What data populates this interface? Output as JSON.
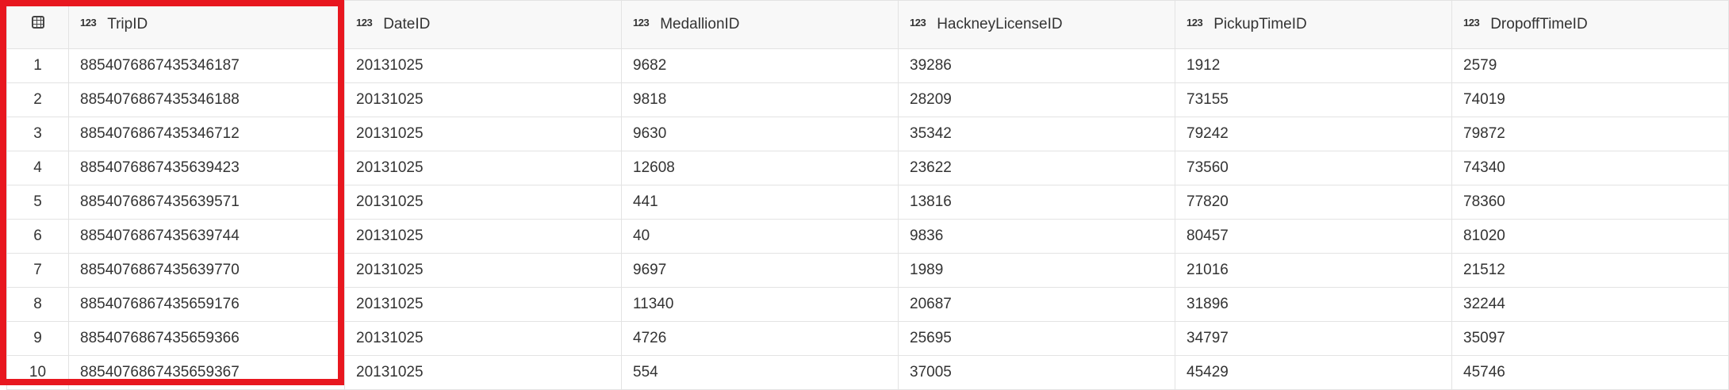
{
  "columns": [
    "TripID",
    "DateID",
    "MedallionID",
    "HackneyLicenseID",
    "PickupTimeID",
    "DropoffTimeID"
  ],
  "type_icon_label": "123",
  "highlight_color": "#e8171f",
  "rows": [
    [
      "1",
      "8854076867435346187",
      "20131025",
      "9682",
      "39286",
      "1912",
      "2579"
    ],
    [
      "2",
      "8854076867435346188",
      "20131025",
      "9818",
      "28209",
      "73155",
      "74019"
    ],
    [
      "3",
      "8854076867435346712",
      "20131025",
      "9630",
      "35342",
      "79242",
      "79872"
    ],
    [
      "4",
      "8854076867435639423",
      "20131025",
      "12608",
      "23622",
      "73560",
      "74340"
    ],
    [
      "5",
      "8854076867435639571",
      "20131025",
      "441",
      "13816",
      "77820",
      "78360"
    ],
    [
      "6",
      "8854076867435639744",
      "20131025",
      "40",
      "9836",
      "80457",
      "81020"
    ],
    [
      "7",
      "8854076867435639770",
      "20131025",
      "9697",
      "1989",
      "21016",
      "21512"
    ],
    [
      "8",
      "8854076867435659176",
      "20131025",
      "11340",
      "20687",
      "31896",
      "32244"
    ],
    [
      "9",
      "8854076867435659366",
      "20131025",
      "4726",
      "25695",
      "34797",
      "35097"
    ],
    [
      "10",
      "8854076867435659367",
      "20131025",
      "554",
      "37005",
      "45429",
      "45746"
    ]
  ]
}
